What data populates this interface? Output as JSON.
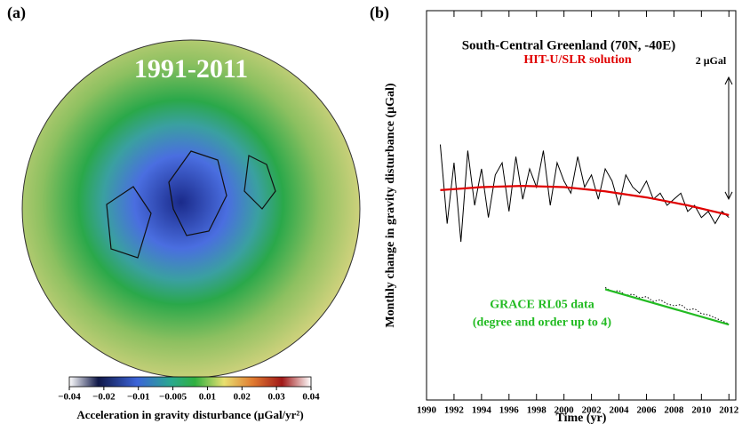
{
  "chart_data": [
    {
      "type": "map",
      "panel": "(a)",
      "title": "1991-2011",
      "colorbar_label": "Acceleration in gravity disturbance (μGal/yr²)",
      "colorbar_ticks": [
        {
          "value": -0.04,
          "label": "−0.04"
        },
        {
          "value": -0.02,
          "label": "−0.02"
        },
        {
          "value": -0.01,
          "label": "−0.01"
        },
        {
          "value": -0.005,
          "label": "−0.005"
        },
        0.01,
        0.02,
        0.03,
        0.04
      ]
    },
    {
      "type": "line",
      "panel": "(b)",
      "title": "South-Central Greenland (70N, -40E)",
      "xlabel": "Time (yr)",
      "ylabel": "Monthly change in gravity disturbance (μGal)",
      "xlim": [
        1990,
        2012.5
      ],
      "ylim": [
        -4.4,
        2
      ],
      "xticks": [
        1990,
        1992,
        1994,
        1996,
        1998,
        2000,
        2002,
        2004,
        2006,
        2008,
        2010,
        2012
      ],
      "scale_bar": {
        "label": "2 μGal",
        "value": 2
      },
      "series": [
        {
          "name": "HIT-U/SLR solution",
          "color": "#e00000",
          "line_color": "#000000",
          "x": [
            1991,
            1991.5,
            1992,
            1992.5,
            1993,
            1993.5,
            1994,
            1994.5,
            1995,
            1995.5,
            1996,
            1996.5,
            1997,
            1997.5,
            1998,
            1998.5,
            1999,
            1999.5,
            2000,
            2000.5,
            2001,
            2001.5,
            2002,
            2002.5,
            2003,
            2003.5,
            2004,
            2004.5,
            2005,
            2005.5,
            2006,
            2006.5,
            2007,
            2007.5,
            2008,
            2008.5,
            2009,
            2009.5,
            2010,
            2010.5,
            2011,
            2011.5,
            2012
          ],
          "values": [
            -0.2,
            -1.5,
            -0.5,
            -1.8,
            -0.3,
            -1.2,
            -0.6,
            -1.4,
            -0.7,
            -0.5,
            -1.3,
            -0.4,
            -1.1,
            -0.6,
            -0.9,
            -0.3,
            -1.2,
            -0.5,
            -0.8,
            -1.0,
            -0.4,
            -0.9,
            -0.7,
            -1.1,
            -0.6,
            -0.8,
            -1.2,
            -0.7,
            -0.9,
            -1.0,
            -0.8,
            -1.1,
            -1.0,
            -1.2,
            -1.1,
            -1.0,
            -1.3,
            -1.2,
            -1.4,
            -1.3,
            -1.5,
            -1.3,
            -1.4
          ]
        },
        {
          "color": "#e00000",
          "fit": true,
          "x": [
            1991,
            1994,
            1997,
            2000,
            2003,
            2006,
            2009,
            2012
          ],
          "values": [
            -0.95,
            -0.9,
            -0.88,
            -0.9,
            -0.97,
            -1.07,
            -1.2,
            -1.36
          ]
        },
        {
          "name": "GRACE RL05 data",
          "subname": "(degree and order up to 4)",
          "color": "#22bb22",
          "line_color": "#000000",
          "dotted": true,
          "x": [
            2003,
            2003.5,
            2004,
            2004.5,
            2005,
            2005.5,
            2006,
            2006.5,
            2007,
            2007.5,
            2008,
            2008.5,
            2009,
            2009.5,
            2010,
            2010.5,
            2011,
            2011.5,
            2012
          ],
          "values": [
            -2.55,
            -2.62,
            -2.6,
            -2.68,
            -2.66,
            -2.72,
            -2.7,
            -2.78,
            -2.75,
            -2.82,
            -2.85,
            -2.83,
            -2.92,
            -2.9,
            -2.98,
            -3.0,
            -3.05,
            -3.1,
            -3.15
          ]
        },
        {
          "color": "#22bb22",
          "fit": true,
          "x": [
            2003,
            2012
          ],
          "values": [
            -2.58,
            -3.16
          ]
        }
      ]
    }
  ]
}
